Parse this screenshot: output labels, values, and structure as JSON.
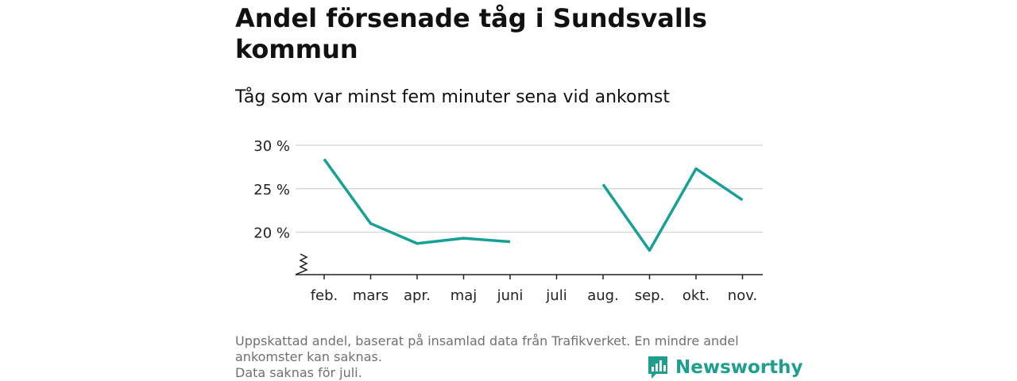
{
  "title": "Andel försenade tåg i Sundsvalls kommun",
  "subtitle": "Tåg som var minst fem minuter sena vid ankomst",
  "footer": {
    "line1": "Uppskattad andel, baserat på insamlad data från Trafikverket. En mindre andel",
    "line2": "ankomster kan saknas.",
    "line3": "Data saknas för juli."
  },
  "brand": {
    "name": "Newsworthy",
    "logo_icon": "chart-speech-bubble-icon",
    "color": "#1e9e8f"
  },
  "colors": {
    "line": "#16a096",
    "grid": "#d9d9d9",
    "axis": "#222222"
  },
  "chart_data": {
    "type": "line",
    "title": "",
    "xlabel": "",
    "ylabel": "",
    "categories": [
      "feb.",
      "mars",
      "apr.",
      "maj",
      "juni",
      "juli",
      "aug.",
      "sep.",
      "okt.",
      "nov."
    ],
    "series": [
      {
        "values": [
          28.4,
          21.0,
          18.7,
          19.3,
          18.9,
          null,
          25.5,
          17.9,
          27.3,
          23.7
        ]
      }
    ],
    "yticks": [
      20,
      25,
      30
    ],
    "ytick_labels": [
      "20 %",
      "25 %",
      "30 %"
    ],
    "ylim": [
      15.3,
      30
    ],
    "y_axis_break": true,
    "grid": "horizontal"
  }
}
